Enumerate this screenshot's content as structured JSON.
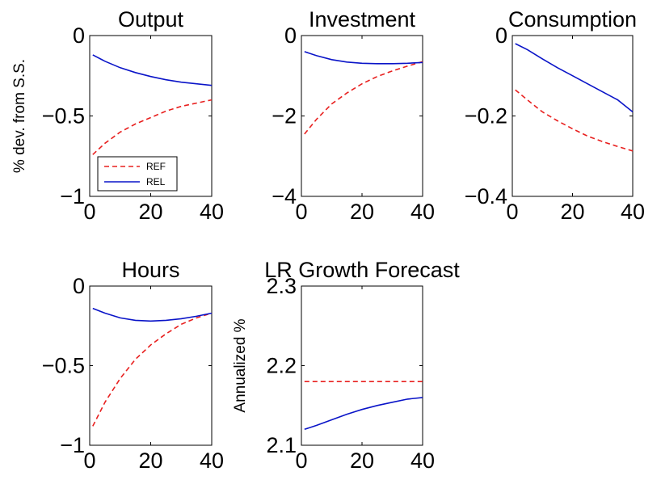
{
  "colors": {
    "REF": "#e8201f",
    "REL": "#0a14c8",
    "axis": "#000000"
  },
  "chart_data": [
    {
      "type": "line",
      "title": "Output",
      "ylabel": "% dev. from S.S.",
      "xlim": [
        0,
        40
      ],
      "ylim": [
        -1,
        0
      ],
      "xticks": [
        0,
        20,
        40
      ],
      "xtick_labels": [
        "0",
        "20",
        "40"
      ],
      "yticks": [
        -1,
        -0.5,
        0
      ],
      "ytick_labels": [
        "−1",
        "−0.5",
        "0"
      ],
      "grid": false,
      "legend_loc": "lower-left",
      "series": [
        {
          "name": "REF",
          "style": "dashed",
          "x": [
            1,
            5,
            10,
            15,
            20,
            25,
            30,
            35,
            40
          ],
          "values": [
            -0.74,
            -0.67,
            -0.6,
            -0.55,
            -0.51,
            -0.47,
            -0.44,
            -0.42,
            -0.4
          ]
        },
        {
          "name": "REL",
          "style": "solid",
          "x": [
            1,
            5,
            10,
            15,
            20,
            25,
            30,
            35,
            40
          ],
          "values": [
            -0.12,
            -0.16,
            -0.2,
            -0.23,
            -0.255,
            -0.275,
            -0.29,
            -0.3,
            -0.31
          ]
        }
      ]
    },
    {
      "type": "line",
      "title": "Investment",
      "ylabel": "",
      "xlim": [
        0,
        40
      ],
      "ylim": [
        -4,
        0
      ],
      "xticks": [
        0,
        20,
        40
      ],
      "xtick_labels": [
        "0",
        "20",
        "40"
      ],
      "yticks": [
        -4,
        -2,
        0
      ],
      "ytick_labels": [
        "−4",
        "−2",
        "0"
      ],
      "grid": false,
      "series": [
        {
          "name": "REF",
          "style": "dashed",
          "x": [
            1,
            5,
            10,
            15,
            20,
            25,
            30,
            35,
            40
          ],
          "values": [
            -2.45,
            -2.08,
            -1.7,
            -1.43,
            -1.2,
            -1.02,
            -0.88,
            -0.76,
            -0.65
          ]
        },
        {
          "name": "REL",
          "style": "solid",
          "x": [
            1,
            5,
            10,
            15,
            20,
            25,
            30,
            35,
            40
          ],
          "values": [
            -0.4,
            -0.5,
            -0.6,
            -0.66,
            -0.69,
            -0.7,
            -0.7,
            -0.69,
            -0.67
          ]
        }
      ]
    },
    {
      "type": "line",
      "title": "Consumption",
      "ylabel": "",
      "xlim": [
        0,
        40
      ],
      "ylim": [
        -0.4,
        0
      ],
      "xticks": [
        0,
        20,
        40
      ],
      "xtick_labels": [
        "0",
        "20",
        "40"
      ],
      "yticks": [
        -0.4,
        -0.2,
        0
      ],
      "ytick_labels": [
        "−0.4",
        "−0.2",
        "0"
      ],
      "grid": false,
      "series": [
        {
          "name": "REF",
          "style": "dashed",
          "x": [
            1,
            5,
            10,
            15,
            20,
            25,
            30,
            35,
            40
          ],
          "values": [
            -0.135,
            -0.16,
            -0.19,
            -0.212,
            -0.232,
            -0.25,
            -0.264,
            -0.276,
            -0.287
          ]
        },
        {
          "name": "REL",
          "style": "solid",
          "x": [
            1,
            5,
            10,
            15,
            20,
            25,
            30,
            35,
            40
          ],
          "values": [
            -0.02,
            -0.035,
            -0.058,
            -0.08,
            -0.1,
            -0.12,
            -0.14,
            -0.16,
            -0.19
          ]
        }
      ]
    },
    {
      "type": "line",
      "title": "Hours",
      "ylabel": "",
      "xlim": [
        0,
        40
      ],
      "ylim": [
        -1,
        0
      ],
      "xticks": [
        0,
        20,
        40
      ],
      "xtick_labels": [
        "0",
        "20",
        "40"
      ],
      "yticks": [
        -1,
        -0.5,
        0
      ],
      "ytick_labels": [
        "−1",
        "−0.5",
        "0"
      ],
      "grid": false,
      "series": [
        {
          "name": "REF",
          "style": "dashed",
          "x": [
            1,
            5,
            10,
            15,
            20,
            25,
            30,
            35,
            40
          ],
          "values": [
            -0.88,
            -0.73,
            -0.58,
            -0.46,
            -0.37,
            -0.3,
            -0.24,
            -0.2,
            -0.17
          ]
        },
        {
          "name": "REL",
          "style": "solid",
          "x": [
            1,
            5,
            10,
            15,
            20,
            25,
            30,
            35,
            40
          ],
          "values": [
            -0.14,
            -0.17,
            -0.2,
            -0.215,
            -0.22,
            -0.215,
            -0.205,
            -0.19,
            -0.17
          ]
        }
      ]
    },
    {
      "type": "line",
      "title": "LR Growth Forecast",
      "ylabel": "Annualized %",
      "xlim": [
        0,
        40
      ],
      "ylim": [
        2.1,
        2.3
      ],
      "xticks": [
        0,
        20,
        40
      ],
      "xtick_labels": [
        "0",
        "20",
        "40"
      ],
      "yticks": [
        2.1,
        2.2,
        2.3
      ],
      "ytick_labels": [
        "2.1",
        "2.2",
        "2.3"
      ],
      "grid": false,
      "series": [
        {
          "name": "REF",
          "style": "dashed",
          "x": [
            1,
            40
          ],
          "values": [
            2.18,
            2.18
          ]
        },
        {
          "name": "REL",
          "style": "solid",
          "x": [
            1,
            5,
            10,
            15,
            20,
            25,
            30,
            35,
            40
          ],
          "values": [
            2.12,
            2.125,
            2.132,
            2.139,
            2.145,
            2.15,
            2.154,
            2.158,
            2.16
          ]
        }
      ]
    }
  ]
}
